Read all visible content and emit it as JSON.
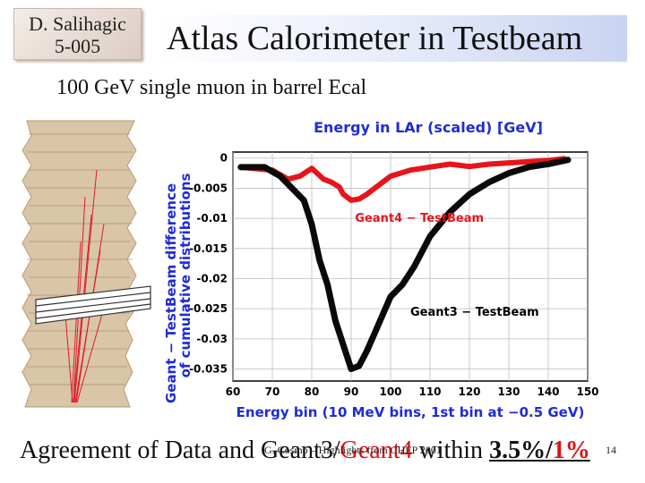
{
  "author": {
    "line1": "D. Salihagic",
    "line2": "5-005"
  },
  "title": "Atlas Calorimeter in Testbeam",
  "subtitle": "100 GeV single muon in barrel Ecal",
  "plot": {
    "title": "Energy in LAr (scaled) [GeV]",
    "ylabel_line1": "Geant − TestBeam difference",
    "ylabel_line2": "of cumulative distributions",
    "xlabel": "Energy bin (10 MeV bins, 1st bin at −0.5 GeV)",
    "label_geant4": "Geant4 − TestBeam",
    "label_geant3": "Geant3 − TestBeam",
    "color_geant4": "#e8141c",
    "color_geant3": "#0a0a0a",
    "color_text": "#1f2bd8"
  },
  "chart_data": {
    "type": "line",
    "title": "Energy in LAr (scaled) [GeV]",
    "xlabel": "Energy bin (10 MeV bins, 1st bin at −0.5 GeV)",
    "ylabel": "Geant − TestBeam difference of cumulative distributions",
    "xlim": [
      60,
      150
    ],
    "ylim": [
      -0.037,
      0.001
    ],
    "x_ticks": [
      60,
      70,
      80,
      90,
      100,
      110,
      120,
      130,
      140,
      150
    ],
    "y_ticks": [
      "0",
      "-0.005",
      "-0.01",
      "-0.015",
      "-0.02",
      "-0.025",
      "-0.03",
      "-0.035"
    ],
    "grid": true,
    "series": [
      {
        "name": "Geant4 − TestBeam",
        "x": [
          62,
          70,
          74,
          77,
          80,
          83,
          85,
          87,
          88,
          90,
          92,
          94,
          96,
          98,
          100,
          105,
          110,
          115,
          120,
          125,
          130,
          135,
          140,
          144
        ],
        "y": [
          -0.0015,
          -0.002,
          -0.0035,
          -0.003,
          -0.0017,
          -0.0035,
          -0.004,
          -0.0048,
          -0.006,
          -0.007,
          -0.0068,
          -0.006,
          -0.005,
          -0.004,
          -0.003,
          -0.002,
          -0.0015,
          -0.001,
          -0.0014,
          -0.001,
          -0.0008,
          -0.0006,
          -0.0004,
          -0.0001
        ]
      },
      {
        "name": "Geant3 − TestBeam",
        "x": [
          62,
          68,
          72,
          75,
          78,
          80,
          82,
          84,
          86,
          88,
          90,
          92,
          94,
          96,
          98,
          100,
          103,
          106,
          110,
          115,
          120,
          125,
          130,
          135,
          140,
          145
        ],
        "y": [
          -0.0015,
          -0.0015,
          -0.003,
          -0.005,
          -0.007,
          -0.011,
          -0.017,
          -0.021,
          -0.027,
          -0.031,
          -0.035,
          -0.0345,
          -0.032,
          -0.029,
          -0.026,
          -0.023,
          -0.021,
          -0.018,
          -0.013,
          -0.009,
          -0.006,
          -0.004,
          -0.0025,
          -0.0015,
          -0.001,
          -0.0003
        ]
      }
    ]
  },
  "footer": {
    "part1": "Agreement of Data and Geant3",
    "slash": "/",
    "part2": "Geant4",
    "part3": " within ",
    "pct1": "3.5%",
    "pct_sep": "/",
    "pct2": "1%"
  },
  "overlay_text": "G. Cosmo – Highlights from CHEP 2001",
  "page_number": "14"
}
